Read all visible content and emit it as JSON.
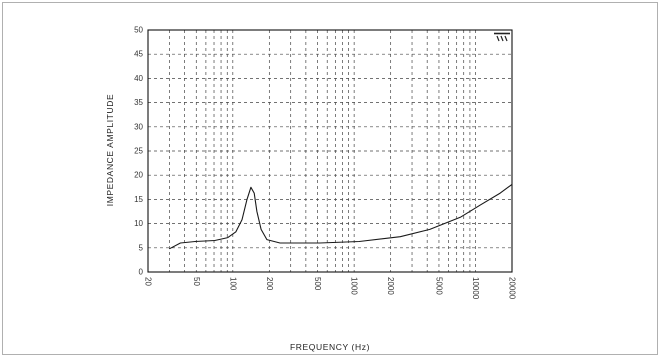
{
  "chart_data": {
    "type": "line",
    "xlabel": "FREQUENCY (Hz)",
    "ylabel": "IMPEDANCE AMPLITUDE",
    "x_scale": "log",
    "xlim": [
      20,
      20000
    ],
    "ylim": [
      0,
      50
    ],
    "x_ticks": [
      20,
      50,
      100,
      200,
      500,
      1000,
      2000,
      5000,
      10000,
      20000
    ],
    "x_tick_labels": [
      "20",
      "50",
      "100",
      "200",
      "500",
      "1000",
      "2000",
      "5000",
      "10000",
      "20000"
    ],
    "y_ticks": [
      0,
      5,
      10,
      15,
      20,
      25,
      30,
      35,
      40,
      45,
      50
    ],
    "y_tick_labels": [
      "0",
      "5",
      "10",
      "15",
      "20",
      "25",
      "30",
      "35",
      "40",
      "45",
      "50"
    ],
    "grid": true,
    "series": [
      {
        "x": [
          30,
          37,
          49,
          71,
          91,
          106,
          119,
          131,
          141,
          150,
          158,
          171,
          191,
          245,
          520,
          1100,
          2400,
          4200,
          7500,
          10900,
          16000,
          20000
        ],
        "y": [
          4.8,
          6.0,
          6.3,
          6.5,
          7.1,
          8.3,
          10.8,
          15.0,
          17.5,
          16.3,
          12.5,
          8.8,
          6.7,
          6.0,
          6.0,
          6.3,
          7.3,
          8.8,
          11.3,
          13.8,
          16.3,
          18.1
        ]
      }
    ]
  },
  "colors": {
    "series_line": "#1a1a1a",
    "grid": "#444444",
    "axes": "#111111",
    "background": "#ffffff",
    "outer_border": "#b0b0b0"
  }
}
